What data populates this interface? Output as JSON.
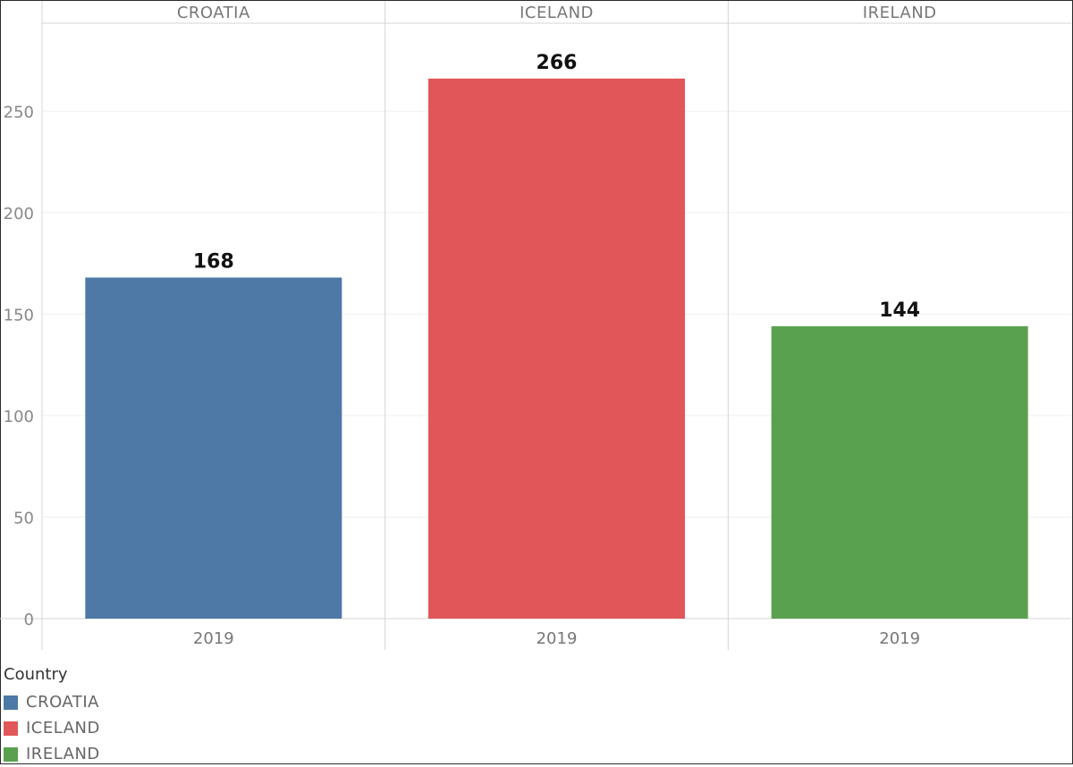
{
  "chart_data": {
    "type": "bar",
    "categories": [
      "CROATIA",
      "ICELAND",
      "IRELAND"
    ],
    "x_tick_labels": [
      "2019",
      "2019",
      "2019"
    ],
    "values": [
      168,
      266,
      144
    ],
    "colors": [
      "#4e79a7",
      "#e15759",
      "#59a14f"
    ],
    "ylim": [
      0,
      295
    ],
    "y_ticks": [
      0,
      50,
      100,
      150,
      200,
      250
    ],
    "grid": true,
    "legend": {
      "title": "Country",
      "position": "bottom-left",
      "items": [
        "CROATIA",
        "ICELAND",
        "IRELAND"
      ]
    }
  }
}
